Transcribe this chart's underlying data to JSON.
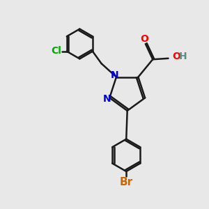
{
  "bg_color": "#e8e8e8",
  "bond_color": "#1a1a1a",
  "bond_width": 1.8,
  "atom_colors": {
    "N": "#0000dd",
    "O": "#ff0000",
    "Cl": "#00aa00",
    "Br": "#cc6600",
    "H": "#5a8a8a"
  },
  "font_size": 10,
  "font_size_br": 11
}
